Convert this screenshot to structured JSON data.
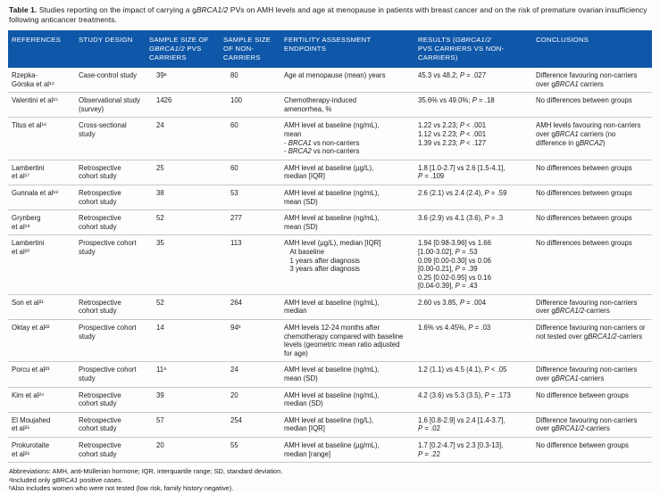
{
  "colors": {
    "header_bg": "#0f57a8",
    "header_text": "#ffffff",
    "row_divider": "#c8c8c8"
  },
  "table_title": {
    "label": "Table 1.",
    "text": "Studies reporting on the impact of carrying a g*BRCA1/2* PVs on AMH levels and age at menopause in patients with breast cancer and on the risk of premature ovarian insufficiency following anticancer treatments."
  },
  "table": {
    "columns": [
      {
        "key": "reference",
        "label": "REFERENCES"
      },
      {
        "key": "design",
        "label": "STUDY DESIGN"
      },
      {
        "key": "carriers",
        "label": "SAMPLE SIZE OF\n*GBRCA1/2* PVS\nCARRIERS"
      },
      {
        "key": "noncarriers",
        "label": "SAMPLE SIZE\nOF NON-\nCARRIERS"
      },
      {
        "key": "endpoints",
        "label": "FERTILITY ASSESSMENT\nENDPOINTS"
      },
      {
        "key": "results",
        "label": "RESULTS (*GBRCA1/2*\nPVS CARRIERS VS NON-\nCARRIERS)"
      },
      {
        "key": "conclusions",
        "label": "CONCLUSIONS"
      }
    ],
    "rows": [
      {
        "reference": "Rzepka-\nGórska et al¹⁴",
        "design": "Case-control study",
        "carriers": "39ᵃ",
        "noncarriers": "80",
        "endpoints": "Age at menopause (mean) years",
        "results": "45.3 vs 48.2; *P* = .027",
        "conclusions": "Difference favouring non-carriers over g*BRCA1* carriers"
      },
      {
        "reference": "Valentini et al¹⁵",
        "design": "Observational study (survey)",
        "carriers": "1426",
        "noncarriers": "100",
        "endpoints": "Chemotherapy-induced\namenorrhea, %",
        "results": "35.6% vs 49.0%; *P* = .18",
        "conclusions": "No differences between groups"
      },
      {
        "reference": "Titus et al¹⁶",
        "design": "Cross-sectional study",
        "carriers": "24",
        "noncarriers": "60",
        "endpoints": "AMH level at baseline (ng/mL),\nmean\n- *BRCA1* vs non-carriers\n- *BRCA2* vs non-carriers",
        "results": "1.22 vs 2.23; *P* < .001\n1.12 vs 2.23; *P* < .001\n1.39 vs 2.23; *P* < .127",
        "conclusions": "AMH levels favouring non-carriers over g*BRCA1* carriers (no difference in g*BRCA2*)"
      },
      {
        "reference": "Lambertini\net al¹⁷",
        "design": "Retrospective cohort study",
        "carriers": "25",
        "noncarriers": "60",
        "endpoints": "AMH level at baseline (µg/L),\nmedian [IQR]",
        "results": "1.8 [1.0-2.7] vs 2.6 [1.5-4.1],\n*P* = .109",
        "conclusions": "No differences between groups"
      },
      {
        "reference": "Gunnala et al¹⁸",
        "design": "Retrospective cohort study",
        "carriers": "38",
        "noncarriers": "53",
        "endpoints": "AMH level at baseline (ng/mL),\nmean (SD)",
        "results": "2.6 (2.1) vs 2.4 (2.4), *P* = .59",
        "conclusions": "No differences between groups"
      },
      {
        "reference": "Grynberg\net al¹⁹",
        "design": "Retrospective cohort study",
        "carriers": "52",
        "noncarriers": "277",
        "endpoints": "AMH level at baseline (ng/mL),\nmean (SD)",
        "results": "3.6 (2.9) vs 4.1 (3.6), *P* = .3",
        "conclusions": "No differences between groups"
      },
      {
        "reference": "Lambertini\net al²⁰",
        "design": "Prospective cohort study",
        "carriers": "35",
        "noncarriers": "113",
        "endpoints": "AMH level (µg/L), median [IQR]\n   At baseline\n   1 years after diagnosis\n   3 years after diagnosis",
        "results": "1.94 [0.98-3.96] vs 1.66\n[1.00-3.02], *P* = .53\n0.09 [0.00-0.30] vs 0.06\n[0.00-0.21], *P* = .39\n0.25 [0.02-0.95] vs 0.16\n[0.04-0.39], *P* = .43",
        "conclusions": "No differences between groups"
      },
      {
        "reference": "Son et al²¹",
        "design": "Retrospective cohort study",
        "carriers": "52",
        "noncarriers": "264",
        "endpoints": "AMH level at baseline (ng/mL),\nmedian",
        "results": "2.60 vs 3.85, *P* = .004",
        "conclusions": "Difference favouring non-carriers over g*BRCA1/2*-carriers"
      },
      {
        "reference": "Oktay et al²²",
        "design": "Prospective cohort study",
        "carriers": "14",
        "noncarriers": "94ᵇ",
        "endpoints": "AMH levels 12-24 months after chemotherapy compared with baseline levels (geometric mean ratio adjusted for age)",
        "results": "1.6% vs 4.45%, *P* = .03",
        "conclusions": "Difference favouring non-carriers or not tested over g*BRCA1/2*-carriers"
      },
      {
        "reference": "Porcu et al²³",
        "design": "Prospective cohort study",
        "carriers": "11ᵃ",
        "noncarriers": "24",
        "endpoints": "AMH level at baseline (ng/mL),\nmean (SD)",
        "results": "1.2 (1.1) vs 4.5 (4.1), *P* < .05",
        "conclusions": "Difference favouring non-carriers over g*BRCA1*-carriers"
      },
      {
        "reference": "Kim et al²⁴",
        "design": "Retrospective cohort study",
        "carriers": "39",
        "noncarriers": "20",
        "endpoints": "AMH level at baseline (ng/mL),\nmedian (SD)",
        "results": "4.2 (3.6) vs 5.3 (3.5), *P* = .173",
        "conclusions": "No difference between groups"
      },
      {
        "reference": "El Moujahed\net al²⁵",
        "design": "Retrospective cohort study",
        "carriers": "57",
        "noncarriers": "254",
        "endpoints": "AMH level at baseline (ng/L),\nmedian [IQR]",
        "results": "1.6 [0.8-2.9] vs 2.4 [1.4-3.7],\n*P* = .02",
        "conclusions": "Difference favouring non-carriers over g*BRCA1/2*-carriers"
      },
      {
        "reference": "Prokurotaite\net al²⁶",
        "design": "Retrospective cohort study",
        "carriers": "20",
        "noncarriers": "55",
        "endpoints": "AMH level at baseline (µg/mL),\nmedian [range]",
        "results": "1.7 [0.2-4.7] vs 2.3 [0.3-13],\n*P* = .22",
        "conclusions": "No difference between groups"
      }
    ]
  },
  "footnotes": {
    "abbreviations": "Abbreviations: AMH, anti-Müllerian hormone; IQR, interquartile range; SD, standard deviation.",
    "note_a": "ᵃIncluded only g*BRCA1* positive cases.",
    "note_b": "ᵇAlso includes women who were not tested (low risk, family history negative)."
  }
}
